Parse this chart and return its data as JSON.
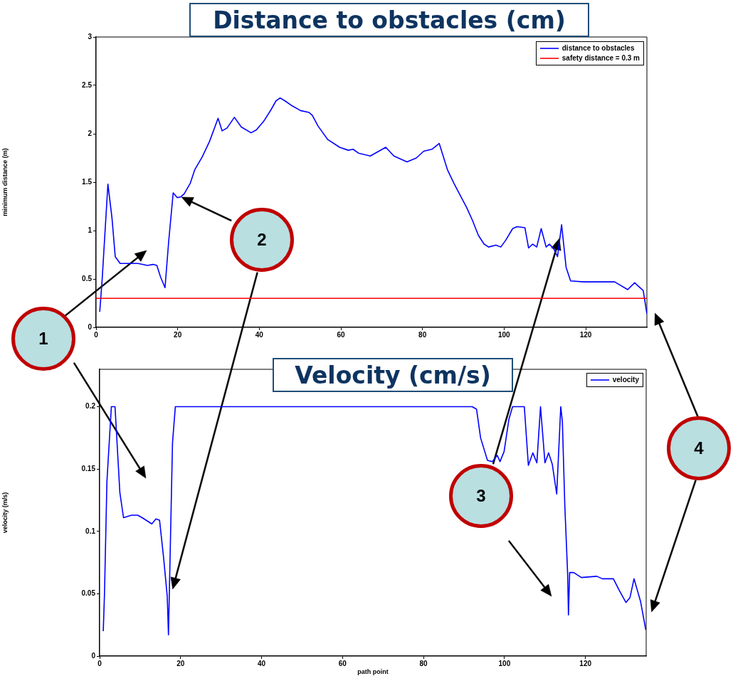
{
  "chart_data": [
    {
      "type": "line",
      "title": "Distance to obstacles (cm)",
      "ylabel": "minimum distance (m)",
      "xlim": [
        0,
        135
      ],
      "xticks": [
        0,
        20,
        40,
        60,
        80,
        100,
        120
      ],
      "ylim": [
        0,
        3
      ],
      "yticks": [
        0,
        0.5,
        1,
        1.5,
        2,
        2.5,
        3
      ],
      "grid": false,
      "legend": "top right",
      "marker": "none",
      "line_style": "solid",
      "series": [
        {
          "name": "distance to obstacles",
          "color": "#0000ff",
          "x": [
            0.9,
            1.5,
            2.9,
            3.9,
            4.7,
            5.9,
            7.9,
            10.3,
            12.6,
            14.0,
            14.9,
            15.8,
            16.9,
            17.8,
            18.9,
            19.9,
            20.8,
            21.6,
            23.1,
            24.2,
            26.0,
            27.8,
            29.9,
            30.9,
            32.1,
            33.9,
            35.6,
            38.0,
            39.3,
            41.1,
            42.9,
            44.1,
            45.1,
            46.3,
            48.0,
            50.1,
            52.2,
            53.0,
            54.4,
            56.8,
            59.7,
            61.8,
            63.0,
            64.3,
            67.2,
            71.0,
            73.0,
            76.2,
            78.5,
            80.3,
            82.3,
            84.1,
            86.1,
            87.8,
            89.3,
            90.8,
            92.2,
            93.7,
            95.1,
            96.2,
            98.0,
            99.2,
            100.4,
            102.1,
            103.2,
            105.1,
            106.0,
            107.0,
            108.0,
            109.1,
            110.3,
            111.1,
            112.2,
            113.1,
            114.1,
            115.2,
            116.3,
            119.5,
            123.6,
            127.1,
            130.3,
            132.0,
            134.1,
            135.0
          ],
          "values": [
            0.16,
            0.5,
            1.48,
            1.13,
            0.73,
            0.66,
            0.66,
            0.66,
            0.64,
            0.65,
            0.64,
            0.52,
            0.41,
            0.89,
            1.39,
            1.34,
            1.35,
            1.38,
            1.49,
            1.63,
            1.76,
            1.92,
            2.16,
            2.03,
            2.06,
            2.17,
            2.07,
            2.01,
            2.04,
            2.13,
            2.25,
            2.34,
            2.37,
            2.34,
            2.29,
            2.24,
            2.22,
            2.19,
            2.08,
            1.94,
            1.86,
            1.83,
            1.84,
            1.8,
            1.77,
            1.86,
            1.77,
            1.71,
            1.75,
            1.82,
            1.84,
            1.9,
            1.63,
            1.48,
            1.36,
            1.24,
            1.11,
            0.95,
            0.86,
            0.83,
            0.85,
            0.83,
            0.9,
            1.02,
            1.04,
            1.03,
            0.82,
            0.86,
            0.83,
            1.02,
            0.83,
            0.86,
            0.81,
            0.73,
            1.06,
            0.62,
            0.48,
            0.47,
            0.47,
            0.47,
            0.39,
            0.46,
            0.38,
            0.14
          ]
        }
      ],
      "ref_lines": [
        {
          "axis": "y",
          "value": 0.3,
          "label": "safety distance = 0.3 m",
          "color": "#ff0000"
        }
      ],
      "annotations": [
        "1",
        "2",
        "3",
        "4"
      ]
    },
    {
      "type": "line",
      "title": "Velocity (cm/s)",
      "xlabel": "path point",
      "ylabel": "velocity (m/s)",
      "xlim": [
        0,
        135
      ],
      "xticks": [
        0,
        20,
        40,
        60,
        80,
        100,
        120
      ],
      "ylim": [
        0,
        0.23
      ],
      "yticks": [
        0,
        0.05,
        0.1,
        0.15,
        0.2
      ],
      "grid": false,
      "legend": "top right",
      "marker": "none",
      "line_style": "solid",
      "series": [
        {
          "name": "velocity",
          "color": "#0000ff",
          "x": [
            0.9,
            1.2,
            1.8,
            2.9,
            3.8,
            5.0,
            5.9,
            7.9,
            9.4,
            10.5,
            12.9,
            13.9,
            14.8,
            15.8,
            16.7,
            17.0,
            18.0,
            18.7,
            92.0,
            93.1,
            94.1,
            95.8,
            97.0,
            98.2,
            98.9,
            99.9,
            101.1,
            102.0,
            104.9,
            105.9,
            107.0,
            108.0,
            108.9,
            110.0,
            110.9,
            111.8,
            112.9,
            113.9,
            114.3,
            114.9,
            115.6,
            115.8,
            116.1,
            117.1,
            119.0,
            122.8,
            124.2,
            126.9,
            128.3,
            130.0,
            131.0,
            132.0,
            133.6,
            134.9
          ],
          "values": [
            0.02,
            0.05,
            0.14,
            0.2,
            0.2,
            0.131,
            0.111,
            0.113,
            0.113,
            0.111,
            0.106,
            0.11,
            0.109,
            0.079,
            0.048,
            0.017,
            0.171,
            0.2,
            0.2,
            0.198,
            0.175,
            0.157,
            0.156,
            0.161,
            0.156,
            0.164,
            0.19,
            0.2,
            0.2,
            0.153,
            0.163,
            0.155,
            0.2,
            0.155,
            0.163,
            0.154,
            0.13,
            0.2,
            0.188,
            0.121,
            0.066,
            0.033,
            0.067,
            0.067,
            0.063,
            0.064,
            0.062,
            0.062,
            0.053,
            0.043,
            0.047,
            0.062,
            0.044,
            0.021
          ]
        }
      ]
    }
  ]
}
